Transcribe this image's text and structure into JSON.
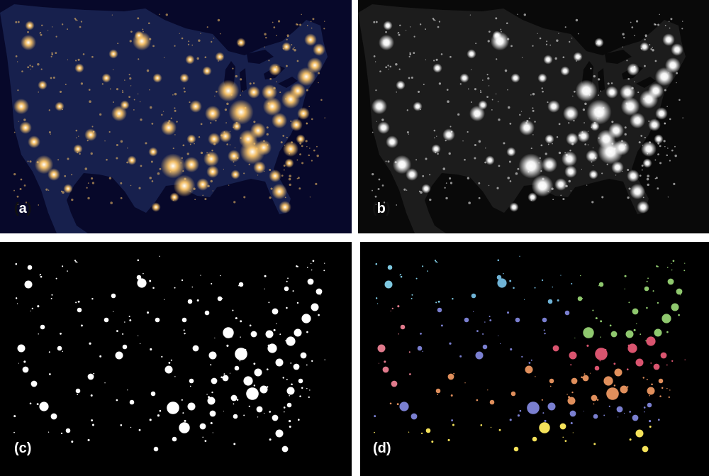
{
  "panels": [
    {
      "key": "a",
      "label_open": "(",
      "label_letter": "a",
      "label_close": ")",
      "style": "true-color night-time light imagery",
      "bracket_color": "#111111"
    },
    {
      "key": "b",
      "label_open": "(",
      "label_letter": "b",
      "label_close": ")",
      "style": "grayscale night-time light imagery",
      "bracket_color": "#111111"
    },
    {
      "key": "c",
      "label_open": "(",
      "label_letter": "c",
      "label_close": ")",
      "style": "binary light mask",
      "bracket_color": "#ffffff"
    },
    {
      "key": "d",
      "label_open": "(",
      "label_letter": "d",
      "label_close": ")",
      "style": "clustered regions",
      "bracket_color": "#ffffff"
    }
  ],
  "colors": {
    "page_background": "#ffffff",
    "panel_a_ocean": "#07082a",
    "panel_a_land": "#17204d",
    "panel_a_light": "#ffc86a",
    "panel_b_ocean": "#090909",
    "panel_b_land": "#1c1c1c",
    "panel_b_light": "#ffffff",
    "mask_background": "#000000",
    "mask_light": "#ffffff",
    "cluster_colors": {
      "northwest": "#7ec8e0",
      "north_central": "#6fb3d6",
      "great_lakes_northeast": "#8fc86e",
      "california": "#e07a8c",
      "midwest": "#d9546f",
      "southwest_central": "#e08f5c",
      "south_central": "#7a7fd0",
      "gulf_florida": "#f5e25a"
    }
  }
}
